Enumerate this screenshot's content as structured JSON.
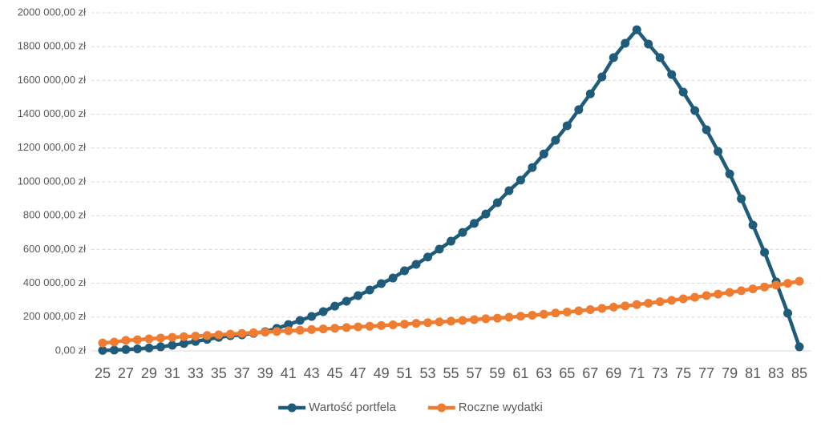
{
  "chart_data": {
    "type": "line",
    "x": [
      25,
      26,
      27,
      28,
      29,
      30,
      31,
      32,
      33,
      34,
      35,
      36,
      37,
      38,
      39,
      40,
      41,
      42,
      43,
      44,
      45,
      46,
      47,
      48,
      49,
      50,
      51,
      52,
      53,
      54,
      55,
      56,
      57,
      58,
      59,
      60,
      61,
      62,
      63,
      64,
      65,
      66,
      67,
      68,
      69,
      70,
      71,
      72,
      73,
      74,
      75,
      76,
      77,
      78,
      79,
      80,
      81,
      82,
      83,
      84,
      85
    ],
    "xlim": [
      24,
      86
    ],
    "xticks": [
      25,
      27,
      29,
      31,
      33,
      35,
      37,
      39,
      41,
      43,
      45,
      47,
      49,
      51,
      53,
      55,
      57,
      59,
      61,
      63,
      65,
      67,
      69,
      71,
      73,
      75,
      77,
      79,
      81,
      83,
      85
    ],
    "ylim": [
      0,
      2000000
    ],
    "yticks": [
      {
        "value": 0,
        "label": "0,00 zł"
      },
      {
        "value": 200000,
        "label": "200 000,00 zł"
      },
      {
        "value": 400000,
        "label": "400 000,00 zł"
      },
      {
        "value": 600000,
        "label": "600 000,00 zł"
      },
      {
        "value": 800000,
        "label": "800 000,00 zł"
      },
      {
        "value": 1000000,
        "label": "1000 000,00 zł"
      },
      {
        "value": 1200000,
        "label": "1200 000,00 zł"
      },
      {
        "value": 1400000,
        "label": "1400 000,00 zł"
      },
      {
        "value": 1600000,
        "label": "1600 000,00 zł"
      },
      {
        "value": 1800000,
        "label": "1800 000,00 zł"
      },
      {
        "value": 2000000,
        "label": "2000 000,00 zł"
      }
    ],
    "grid": true,
    "legend": "bottom",
    "series": [
      {
        "name": "Wartość portfela",
        "color": "#1f5c7a",
        "values": [
          3000,
          5000,
          8000,
          12000,
          17000,
          24000,
          33000,
          44000,
          56000,
          68000,
          80000,
          90000,
          95000,
          104000,
          114000,
          133000,
          156000,
          180000,
          204000,
          232000,
          265000,
          294000,
          327000,
          360000,
          398000,
          431000,
          474000,
          512000,
          555000,
          602000,
          649000,
          701000,
          754000,
          810000,
          877000,
          948000,
          1010000,
          1085000,
          1165000,
          1246000,
          1332000,
          1427000,
          1521000,
          1621000,
          1735000,
          1820000,
          1900000,
          1815000,
          1735000,
          1635000,
          1531000,
          1422000,
          1308000,
          1180000,
          1047000,
          900000,
          744000,
          583000,
          408000,
          223000,
          24000
        ]
      },
      {
        "name": "Roczne wydatki",
        "color": "#ee7d31",
        "values": [
          47000,
          52000,
          62000,
          66000,
          71000,
          76000,
          80000,
          84000,
          87000,
          91000,
          95000,
          99000,
          103000,
          107000,
          111000,
          115000,
          119000,
          122000,
          126000,
          130000,
          134000,
          138000,
          142000,
          146000,
          150000,
          154000,
          158000,
          163000,
          167000,
          171000,
          176000,
          180000,
          185000,
          190000,
          194000,
          199000,
          205000,
          211000,
          217000,
          224000,
          230000,
          237000,
          244000,
          251000,
          259000,
          266000,
          274000,
          282000,
          291000,
          299000,
          308000,
          317000,
          327000,
          336000,
          346000,
          356000,
          367000,
          378000,
          389000,
          400000,
          412000
        ]
      }
    ]
  }
}
